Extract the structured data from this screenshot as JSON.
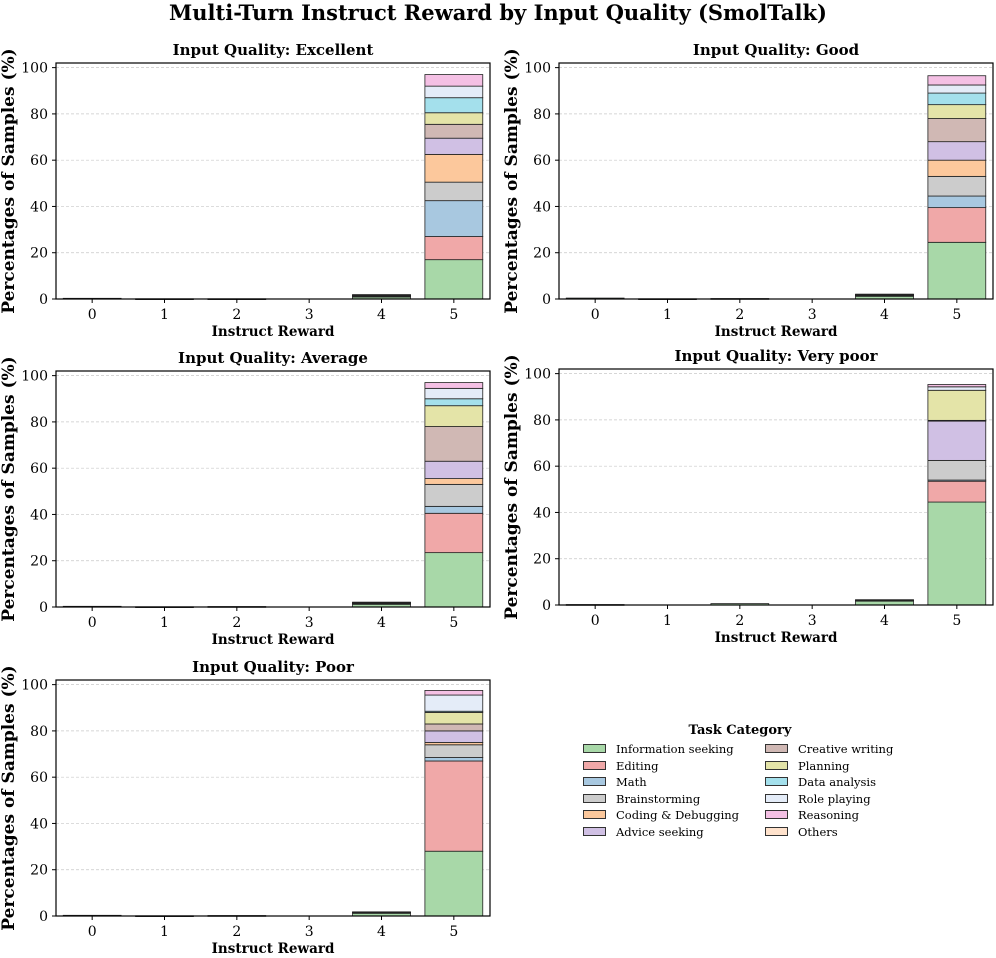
{
  "chart_data": {
    "suptitle": "Multi-Turn Instruct Reward by Input Quality (SmolTalk)",
    "type": "bar",
    "stacked": true,
    "xlabel": "Instruct Reward",
    "ylabel": "Percentages of Samples (%)",
    "ylim": [
      0,
      102
    ],
    "yticks": [
      0,
      20,
      40,
      60,
      80,
      100
    ],
    "categories": [
      "0",
      "1",
      "2",
      "3",
      "4",
      "5"
    ],
    "grid": "horizontal dashed",
    "task_categories": [
      {
        "name": "Information seeking",
        "color": "#a8d8a8"
      },
      {
        "name": "Editing",
        "color": "#f0a8a8"
      },
      {
        "name": "Math",
        "color": "#a8c8e0"
      },
      {
        "name": "Brainstorming",
        "color": "#cccccc"
      },
      {
        "name": "Coding & Debugging",
        "color": "#fcc89c"
      },
      {
        "name": "Advice seeking",
        "color": "#d0c0e4"
      },
      {
        "name": "Creative writing",
        "color": "#d0b8b4"
      },
      {
        "name": "Planning",
        "color": "#e4e4a8"
      },
      {
        "name": "Data analysis",
        "color": "#a4e0ec"
      },
      {
        "name": "Role playing",
        "color": "#e4ecf8"
      },
      {
        "name": "Reasoning",
        "color": "#f4c0e4"
      },
      {
        "name": "Others",
        "color": "#ffe2cc"
      }
    ],
    "panels": [
      {
        "title": "Input Quality: Excellent",
        "series_values": [
          [
            0.3,
            0.1,
            0.1,
            0,
            1.0,
            17
          ],
          [
            0,
            0,
            0,
            0,
            0.2,
            10
          ],
          [
            0,
            0,
            0,
            0,
            0.1,
            15.5
          ],
          [
            0,
            0,
            0,
            0,
            0.1,
            8
          ],
          [
            0,
            0,
            0,
            0,
            0.1,
            12
          ],
          [
            0,
            0,
            0,
            0,
            0.1,
            7
          ],
          [
            0,
            0,
            0,
            0,
            0.1,
            6
          ],
          [
            0,
            0,
            0,
            0,
            0.1,
            5
          ],
          [
            0,
            0,
            0,
            0,
            0.1,
            6.5
          ],
          [
            0,
            0,
            0,
            0,
            0,
            5
          ],
          [
            0,
            0,
            0,
            0,
            0,
            5
          ],
          [
            0,
            0,
            0,
            0,
            0,
            0
          ]
        ]
      },
      {
        "title": "Input Quality: Good",
        "series_values": [
          [
            0.4,
            0.1,
            0.2,
            0,
            1.2,
            24.5
          ],
          [
            0,
            0,
            0,
            0,
            0.3,
            15
          ],
          [
            0,
            0,
            0,
            0,
            0.1,
            5
          ],
          [
            0,
            0,
            0,
            0,
            0.1,
            8.5
          ],
          [
            0,
            0,
            0,
            0,
            0.1,
            7
          ],
          [
            0,
            0,
            0,
            0,
            0.1,
            8
          ],
          [
            0,
            0,
            0,
            0,
            0.1,
            10
          ],
          [
            0,
            0,
            0,
            0,
            0.1,
            6
          ],
          [
            0,
            0,
            0,
            0,
            0,
            5
          ],
          [
            0,
            0,
            0,
            0,
            0,
            3.5
          ],
          [
            0,
            0,
            0,
            0,
            0,
            4
          ],
          [
            0,
            0,
            0,
            0,
            0,
            0
          ]
        ]
      },
      {
        "title": "Input Quality: Average",
        "series_values": [
          [
            0.3,
            0.1,
            0.2,
            0,
            1.2,
            23.5
          ],
          [
            0,
            0,
            0,
            0,
            0.3,
            17
          ],
          [
            0,
            0,
            0,
            0,
            0.1,
            3
          ],
          [
            0,
            0,
            0,
            0,
            0.1,
            9.5
          ],
          [
            0,
            0,
            0,
            0,
            0.1,
            2.5
          ],
          [
            0,
            0,
            0,
            0,
            0.1,
            7.5
          ],
          [
            0,
            0,
            0,
            0,
            0.1,
            15
          ],
          [
            0,
            0,
            0,
            0,
            0.1,
            9
          ],
          [
            0,
            0,
            0,
            0,
            0,
            3
          ],
          [
            0,
            0,
            0,
            0,
            0,
            4.5
          ],
          [
            0,
            0,
            0,
            0,
            0,
            2.5
          ],
          [
            0,
            0,
            0,
            0,
            0,
            0
          ]
        ]
      },
      {
        "title": "Input Quality: Very poor",
        "series_values": [
          [
            0.2,
            0,
            0.6,
            0,
            1.8,
            44.5
          ],
          [
            0,
            0,
            0,
            0,
            0.2,
            9
          ],
          [
            0,
            0,
            0,
            0,
            0,
            0.5
          ],
          [
            0,
            0,
            0,
            0,
            0.1,
            8.5
          ],
          [
            0,
            0,
            0,
            0,
            0,
            0
          ],
          [
            0,
            0,
            0,
            0,
            0.1,
            17
          ],
          [
            0,
            0,
            0,
            0,
            0,
            0.3
          ],
          [
            0,
            0,
            0,
            0,
            0.1,
            13
          ],
          [
            0,
            0,
            0,
            0,
            0,
            0
          ],
          [
            0,
            0,
            0,
            0,
            0,
            1.5
          ],
          [
            0,
            0,
            0,
            0,
            0,
            1
          ],
          [
            0,
            0,
            0,
            0,
            0,
            0
          ]
        ]
      },
      {
        "title": "Input Quality: Poor",
        "series_values": [
          [
            0.3,
            0.1,
            0.2,
            0,
            1.2,
            28
          ],
          [
            0,
            0,
            0,
            0,
            0.3,
            39
          ],
          [
            0,
            0,
            0,
            0,
            0.1,
            1.5
          ],
          [
            0,
            0,
            0,
            0,
            0.1,
            5.5
          ],
          [
            0,
            0,
            0,
            0,
            0,
            1
          ],
          [
            0,
            0,
            0,
            0,
            0.1,
            5
          ],
          [
            0,
            0,
            0,
            0,
            0,
            3
          ],
          [
            0,
            0,
            0,
            0,
            0,
            5
          ],
          [
            0,
            0,
            0,
            0,
            0,
            0.5
          ],
          [
            0,
            0,
            0,
            0,
            0,
            7
          ],
          [
            0,
            0,
            0,
            0,
            0,
            2
          ],
          [
            0,
            0,
            0,
            0,
            0,
            0
          ]
        ]
      }
    ],
    "legend": {
      "title": "Task Category",
      "columns": [
        [
          "Information seeking",
          "Editing",
          "Math",
          "Brainstorming",
          "Coding & Debugging",
          "Advice seeking"
        ],
        [
          "Creative writing",
          "Planning",
          "Data analysis",
          "Role playing",
          "Reasoning",
          "Others"
        ]
      ]
    }
  }
}
